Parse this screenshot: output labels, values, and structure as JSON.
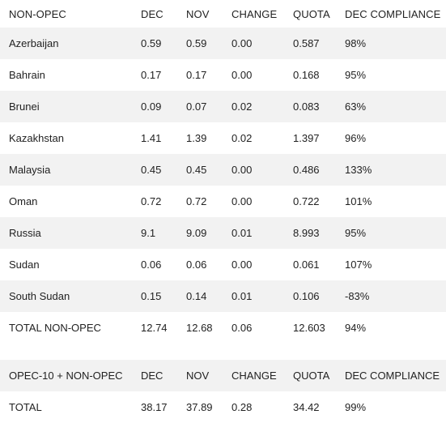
{
  "section1": {
    "headers": [
      "NON-OPEC",
      "DEC",
      "NOV",
      "CHANGE",
      "QUOTA",
      "DEC COMPLIANCE"
    ],
    "rows": [
      [
        "Azerbaijan",
        "0.59",
        "0.59",
        "0.00",
        "0.587",
        "98%"
      ],
      [
        "Bahrain",
        "0.17",
        "0.17",
        "0.00",
        "0.168",
        "95%"
      ],
      [
        "Brunei",
        "0.09",
        "0.07",
        "0.02",
        "0.083",
        "63%"
      ],
      [
        "Kazakhstan",
        "1.41",
        "1.39",
        "0.02",
        "1.397",
        "96%"
      ],
      [
        "Malaysia",
        "0.45",
        "0.45",
        "0.00",
        "0.486",
        "133%"
      ],
      [
        "Oman",
        "0.72",
        "0.72",
        "0.00",
        "0.722",
        "101%"
      ],
      [
        "Russia",
        "9.1",
        "9.09",
        "0.01",
        "8.993",
        "95%"
      ],
      [
        "Sudan",
        "0.06",
        "0.06",
        "0.00",
        "0.061",
        "107%"
      ],
      [
        "South Sudan",
        "0.15",
        "0.14",
        "0.01",
        "0.106",
        "-83%"
      ],
      [
        "TOTAL NON-OPEC",
        "12.74",
        "12.68",
        "0.06",
        "12.603",
        "94%"
      ]
    ]
  },
  "section2": {
    "headers": [
      "OPEC-10 + NON-OPEC",
      "DEC",
      "NOV",
      "CHANGE",
      "QUOTA",
      "DEC COMPLIANCE"
    ],
    "rows": [
      [
        "TOTAL",
        "38.17",
        "37.89",
        "0.28",
        "34.42",
        "99%"
      ]
    ]
  }
}
